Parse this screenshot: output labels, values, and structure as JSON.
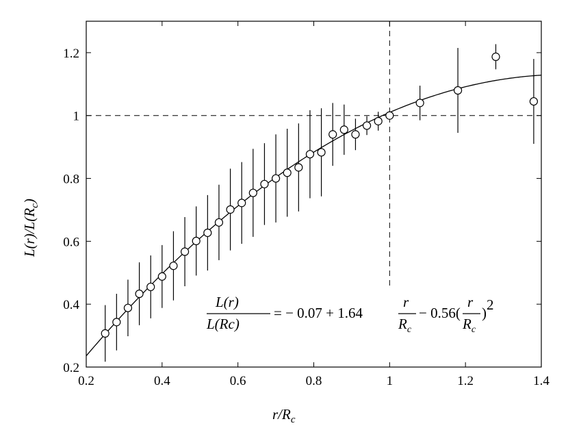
{
  "chart_data": {
    "type": "scatter",
    "title": "",
    "xlabel": "r/R_c",
    "ylabel": "L(r)/L(R_c)",
    "xlim": [
      0.2,
      1.4
    ],
    "ylim": [
      0.2,
      1.3
    ],
    "xticks": [
      "0.2",
      "0.4",
      "0.6",
      "0.8",
      "1",
      "1.2",
      "1.4"
    ],
    "yticks": [
      "0.2",
      "0.4",
      "0.6",
      "0.8",
      "1",
      "1.2"
    ],
    "grid": false,
    "reference_lines": {
      "y": 1,
      "x": 1
    },
    "series": [
      {
        "marker": "open-circle",
        "points": [
          {
            "x": 0.25,
            "y": 0.307,
            "err": 0.09
          },
          {
            "x": 0.28,
            "y": 0.343,
            "err": 0.09
          },
          {
            "x": 0.31,
            "y": 0.388,
            "err": 0.09
          },
          {
            "x": 0.34,
            "y": 0.433,
            "err": 0.1
          },
          {
            "x": 0.37,
            "y": 0.455,
            "err": 0.1
          },
          {
            "x": 0.4,
            "y": 0.488,
            "err": 0.1
          },
          {
            "x": 0.43,
            "y": 0.522,
            "err": 0.11
          },
          {
            "x": 0.46,
            "y": 0.567,
            "err": 0.11
          },
          {
            "x": 0.49,
            "y": 0.601,
            "err": 0.11
          },
          {
            "x": 0.52,
            "y": 0.627,
            "err": 0.12
          },
          {
            "x": 0.55,
            "y": 0.66,
            "err": 0.12
          },
          {
            "x": 0.58,
            "y": 0.701,
            "err": 0.13
          },
          {
            "x": 0.61,
            "y": 0.722,
            "err": 0.13
          },
          {
            "x": 0.64,
            "y": 0.754,
            "err": 0.14
          },
          {
            "x": 0.67,
            "y": 0.782,
            "err": 0.13
          },
          {
            "x": 0.7,
            "y": 0.8,
            "err": 0.14
          },
          {
            "x": 0.73,
            "y": 0.818,
            "err": 0.14
          },
          {
            "x": 0.76,
            "y": 0.835,
            "err": 0.14
          },
          {
            "x": 0.79,
            "y": 0.877,
            "err": 0.14
          },
          {
            "x": 0.82,
            "y": 0.883,
            "err": 0.14
          },
          {
            "x": 0.85,
            "y": 0.94,
            "err": 0.1
          },
          {
            "x": 0.88,
            "y": 0.955,
            "err": 0.08
          },
          {
            "x": 0.91,
            "y": 0.94,
            "err": 0.05
          },
          {
            "x": 0.94,
            "y": 0.968,
            "err": 0.03
          },
          {
            "x": 0.97,
            "y": 0.982,
            "err": 0.03
          },
          {
            "x": 1.0,
            "y": 1.0,
            "err": 0.0
          },
          {
            "x": 1.08,
            "y": 1.04,
            "err": 0.055
          },
          {
            "x": 1.18,
            "y": 1.08,
            "err": 0.135
          },
          {
            "x": 1.28,
            "y": 1.187,
            "err": 0.04
          },
          {
            "x": 1.38,
            "y": 1.045,
            "err": 0.135
          }
        ]
      },
      {
        "type": "line",
        "fit": {
          "a": -0.07,
          "b": 1.64,
          "c": -0.56
        }
      }
    ],
    "annotation": {
      "numerator": "L(r)",
      "denominator": "L(Rc)",
      "rhs_a": "= − 0.07 + 1.64",
      "frac_num": "r",
      "frac_den": "R",
      "frac_den_sub": "c",
      "rhs_b": "− 0.56(",
      "rhs_c": ")",
      "exponent": "2"
    },
    "xlabel_parts": {
      "main": "r/R",
      "sub": "c"
    },
    "ylabel_parts": {
      "a": "L(r)/L(R",
      "sub": "c",
      "b": ")"
    }
  }
}
